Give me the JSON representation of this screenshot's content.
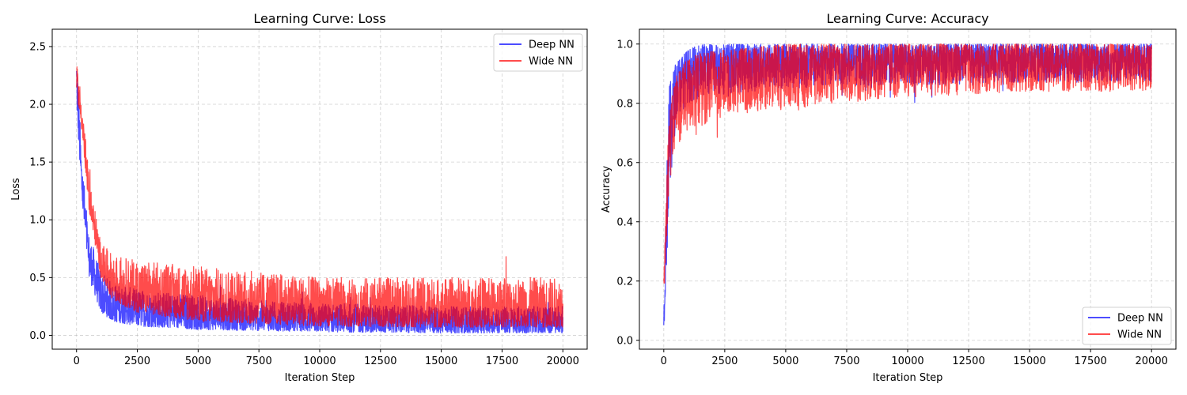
{
  "chart_data": [
    {
      "type": "line",
      "title": "Learning Curve: Loss",
      "xlabel": "Iteration Step",
      "ylabel": "Loss",
      "xlim": [
        -1000,
        21000
      ],
      "ylim": [
        -0.12,
        2.65
      ],
      "x_ticks": [
        "0",
        "2500",
        "5000",
        "7500",
        "10000",
        "12500",
        "15000",
        "17500",
        "20000"
      ],
      "x_tick_values": [
        0,
        2500,
        5000,
        7500,
        10000,
        12500,
        15000,
        17500,
        20000
      ],
      "y_ticks": [
        "0.0",
        "0.5",
        "1.0",
        "1.5",
        "2.0",
        "2.5"
      ],
      "y_tick_values": [
        0,
        0.5,
        1.0,
        1.5,
        2.0,
        2.5
      ],
      "grid": true,
      "legend_position": "upper right",
      "x": [
        0,
        200,
        500,
        1000,
        1500,
        2500,
        5000,
        7500,
        10000,
        15000,
        20000
      ],
      "series": [
        {
          "name": "Deep NN",
          "color": "#0000ff",
          "lower": [
            2.0,
            1.2,
            0.5,
            0.2,
            0.12,
            0.08,
            0.05,
            0.04,
            0.03,
            0.02,
            0.02
          ],
          "upper": [
            2.52,
            1.6,
            0.9,
            0.55,
            0.45,
            0.4,
            0.35,
            0.3,
            0.28,
            0.25,
            0.25
          ]
        },
        {
          "name": "Wide NN",
          "color": "#ff0000",
          "lower": [
            2.1,
            1.8,
            1.1,
            0.5,
            0.3,
            0.2,
            0.12,
            0.1,
            0.08,
            0.07,
            0.07
          ],
          "upper": [
            2.35,
            2.1,
            1.4,
            0.8,
            0.7,
            0.65,
            0.6,
            0.55,
            0.5,
            0.5,
            0.5
          ]
        }
      ]
    },
    {
      "type": "line",
      "title": "Learning Curve: Accuracy",
      "xlabel": "Iteration Step",
      "ylabel": "Accuracy",
      "xlim": [
        -1000,
        21000
      ],
      "ylim": [
        -0.03,
        1.05
      ],
      "x_ticks": [
        "0",
        "2500",
        "5000",
        "7500",
        "10000",
        "12500",
        "15000",
        "17500",
        "20000"
      ],
      "x_tick_values": [
        0,
        2500,
        5000,
        7500,
        10000,
        12500,
        15000,
        17500,
        20000
      ],
      "y_ticks": [
        "0.0",
        "0.2",
        "0.4",
        "0.6",
        "0.8",
        "1.0"
      ],
      "y_tick_values": [
        0,
        0.2,
        0.4,
        0.6,
        0.8,
        1.0
      ],
      "grid": true,
      "legend_position": "lower right",
      "x": [
        0,
        200,
        500,
        1000,
        1500,
        2500,
        5000,
        7500,
        10000,
        15000,
        20000
      ],
      "series": [
        {
          "name": "Deep NN",
          "color": "#0000ff",
          "lower": [
            0.02,
            0.4,
            0.75,
            0.8,
            0.82,
            0.83,
            0.85,
            0.86,
            0.86,
            0.87,
            0.87
          ],
          "upper": [
            0.1,
            0.85,
            0.94,
            0.98,
            1.0,
            1.0,
            1.0,
            1.0,
            1.0,
            1.0,
            1.0
          ]
        },
        {
          "name": "Wide NN",
          "color": "#ff0000",
          "lower": [
            0.1,
            0.5,
            0.65,
            0.7,
            0.72,
            0.76,
            0.78,
            0.8,
            0.82,
            0.84,
            0.84
          ],
          "upper": [
            0.23,
            0.75,
            0.9,
            0.95,
            0.97,
            0.98,
            1.0,
            1.0,
            1.0,
            1.0,
            1.0
          ]
        }
      ]
    }
  ]
}
